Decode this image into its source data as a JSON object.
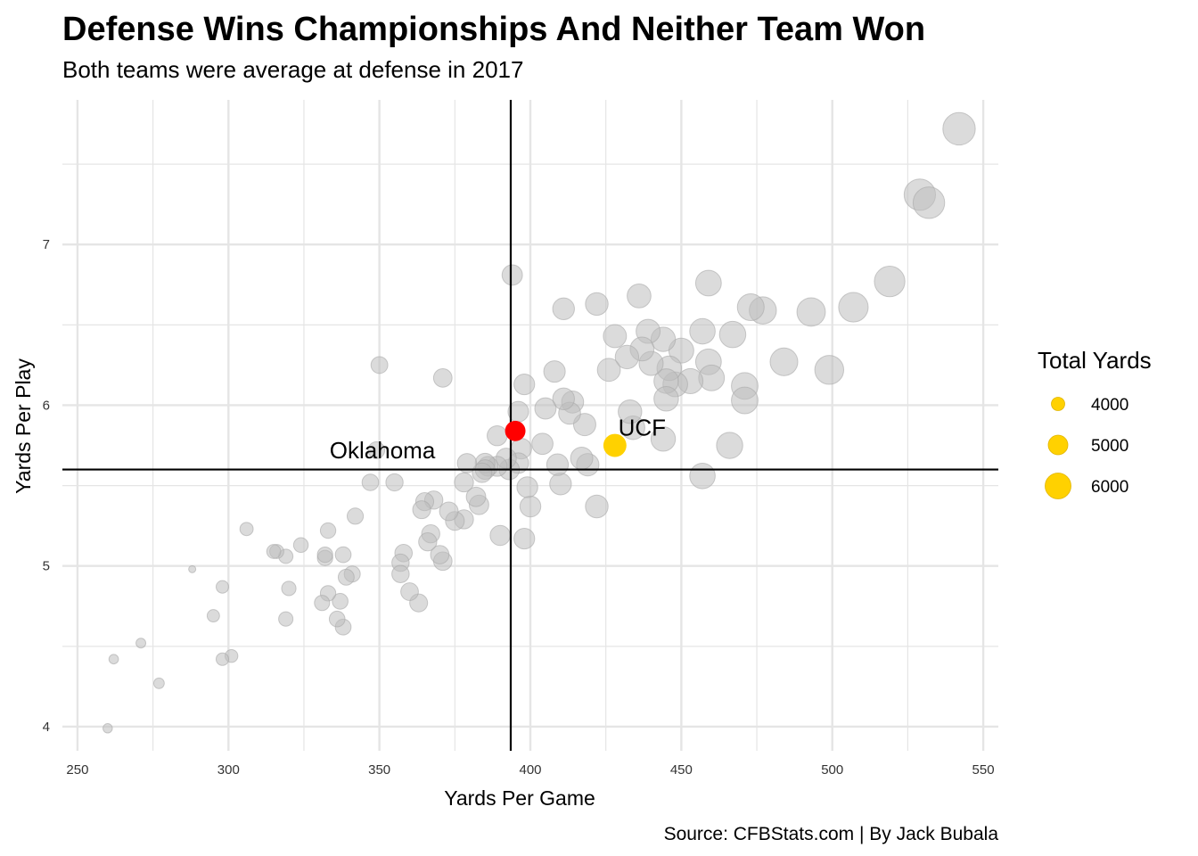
{
  "page": {
    "title": "Defense Wins Championships And Neither Team Won",
    "subtitle": "Both teams were average at defense in 2017",
    "caption": "Source: CFBStats.com | By Jack Bubala"
  },
  "chart_data": {
    "type": "scatter",
    "xlabel": "Yards Per Game",
    "ylabel": "Yards Per Play",
    "xlim": [
      245,
      555
    ],
    "ylim": [
      3.85,
      7.9
    ],
    "xticks": [
      250,
      300,
      350,
      400,
      450,
      500,
      550
    ],
    "yticks": [
      4,
      5,
      6,
      7
    ],
    "grid": true,
    "size_variable": "Total Yards",
    "reference_lines": {
      "x": 393.5,
      "y": 5.6
    },
    "colors": {
      "default": "#bdbdbd",
      "highlight_oklahoma": "#ff0000",
      "highlight_ucf": "#ffd100",
      "reference": "#000000",
      "grid": "#e5e5e5"
    },
    "legend": {
      "title": "Total Yards",
      "position": "right",
      "entries": [
        {
          "label": "4000",
          "value": 4000
        },
        {
          "label": "5000",
          "value": 5000
        },
        {
          "label": "6000",
          "value": 6000
        }
      ]
    },
    "annotations": [
      {
        "text": "Oklahoma",
        "x": 351,
        "y": 5.67
      },
      {
        "text": "UCF",
        "x": 437,
        "y": 5.81
      }
    ],
    "highlights": [
      {
        "team": "Oklahoma",
        "x": 395,
        "y": 5.84,
        "total": 5135
      },
      {
        "team": "UCF",
        "x": 428,
        "y": 5.75,
        "total": 5560
      }
    ],
    "points": [
      [
        542,
        7.72,
        7050
      ],
      [
        529,
        7.31,
        6880
      ],
      [
        532,
        7.26,
        6910
      ],
      [
        519,
        6.77,
        6750
      ],
      [
        507,
        6.61,
        6590
      ],
      [
        499,
        6.22,
        6490
      ],
      [
        493,
        6.58,
        6410
      ],
      [
        484,
        6.27,
        6290
      ],
      [
        477,
        6.59,
        6200
      ],
      [
        473,
        6.61,
        6150
      ],
      [
        471,
        6.12,
        6120
      ],
      [
        471,
        6.03,
        6120
      ],
      [
        467,
        6.44,
        6070
      ],
      [
        466,
        5.75,
        6060
      ],
      [
        459,
        6.76,
        5970
      ],
      [
        459,
        6.27,
        5970
      ],
      [
        460,
        6.17,
        5980
      ],
      [
        457,
        6.46,
        5940
      ],
      [
        457,
        5.56,
        5940
      ],
      [
        453,
        6.15,
        5890
      ],
      [
        450,
        6.34,
        5850
      ],
      [
        448,
        6.13,
        5820
      ],
      [
        446,
        6.23,
        5800
      ],
      [
        445,
        6.15,
        5790
      ],
      [
        444,
        6.41,
        5770
      ],
      [
        444,
        5.79,
        5770
      ],
      [
        445,
        6.04,
        5790
      ],
      [
        440,
        6.26,
        5720
      ],
      [
        439,
        6.46,
        5710
      ],
      [
        437,
        6.35,
        5680
      ],
      [
        436,
        6.68,
        5670
      ],
      [
        434,
        5.86,
        5640
      ],
      [
        433,
        5.96,
        5630
      ],
      [
        432,
        6.3,
        5620
      ],
      [
        428,
        6.43,
        5560
      ],
      [
        426,
        6.22,
        5540
      ],
      [
        422,
        6.63,
        5490
      ],
      [
        422,
        5.37,
        5490
      ],
      [
        418,
        5.88,
        5430
      ],
      [
        419,
        5.63,
        5450
      ],
      [
        417,
        5.67,
        5420
      ],
      [
        414,
        6.02,
        5380
      ],
      [
        413,
        5.95,
        5370
      ],
      [
        411,
        6.6,
        5340
      ],
      [
        411,
        6.04,
        5340
      ],
      [
        410,
        5.51,
        5330
      ],
      [
        409,
        5.63,
        5320
      ],
      [
        408,
        6.21,
        5300
      ],
      [
        405,
        5.98,
        5270
      ],
      [
        404,
        5.76,
        5250
      ],
      [
        400,
        5.37,
        5200
      ],
      [
        399,
        5.49,
        5190
      ],
      [
        398,
        5.17,
        5170
      ],
      [
        398,
        6.13,
        5170
      ],
      [
        397,
        5.73,
        5160
      ],
      [
        396,
        5.96,
        5150
      ],
      [
        396,
        5.64,
        5150
      ],
      [
        394,
        6.81,
        5120
      ],
      [
        393,
        5.6,
        5110
      ],
      [
        392,
        5.67,
        5100
      ],
      [
        390,
        5.19,
        5070
      ],
      [
        389,
        5.81,
        5060
      ],
      [
        389,
        5.62,
        5060
      ],
      [
        386,
        5.62,
        5020
      ],
      [
        385,
        5.64,
        5000
      ],
      [
        385,
        5.6,
        5000
      ],
      [
        384,
        5.58,
        4990
      ],
      [
        383,
        5.38,
        4980
      ],
      [
        382,
        5.43,
        4970
      ],
      [
        379,
        5.64,
        4930
      ],
      [
        378,
        5.52,
        4910
      ],
      [
        378,
        5.29,
        4910
      ],
      [
        375,
        5.28,
        4870
      ],
      [
        373,
        5.34,
        4850
      ],
      [
        371,
        6.17,
        4820
      ],
      [
        371,
        5.03,
        4820
      ],
      [
        370,
        5.07,
        4810
      ],
      [
        368,
        5.41,
        4780
      ],
      [
        367,
        5.2,
        4770
      ],
      [
        366,
        5.15,
        4760
      ],
      [
        365,
        5.4,
        4740
      ],
      [
        364,
        5.35,
        4730
      ],
      [
        363,
        4.77,
        4720
      ],
      [
        360,
        4.84,
        4680
      ],
      [
        358,
        5.08,
        4650
      ],
      [
        357,
        5.02,
        4640
      ],
      [
        357,
        4.95,
        4640
      ],
      [
        355,
        5.52,
        4620
      ],
      [
        350,
        6.25,
        4550
      ],
      [
        349,
        5.72,
        4540
      ],
      [
        347,
        5.52,
        4510
      ],
      [
        342,
        5.31,
        4450
      ],
      [
        341,
        4.95,
        4430
      ],
      [
        339,
        4.93,
        4410
      ],
      [
        338,
        5.07,
        4390
      ],
      [
        338,
        4.62,
        4390
      ],
      [
        337,
        4.78,
        4380
      ],
      [
        336,
        4.67,
        4370
      ],
      [
        333,
        4.83,
        4330
      ],
      [
        333,
        5.22,
        4330
      ],
      [
        332,
        5.05,
        4320
      ],
      [
        332,
        5.07,
        4320
      ],
      [
        331,
        4.77,
        4300
      ],
      [
        324,
        5.13,
        4210
      ],
      [
        320,
        4.86,
        4160
      ],
      [
        319,
        5.06,
        4150
      ],
      [
        319,
        4.67,
        4150
      ],
      [
        316,
        5.09,
        4110
      ],
      [
        315,
        5.09,
        4100
      ],
      [
        306,
        5.23,
        3980
      ],
      [
        301,
        4.44,
        3910
      ],
      [
        298,
        4.87,
        3870
      ],
      [
        298,
        4.42,
        3870
      ],
      [
        295,
        4.69,
        3840
      ],
      [
        288,
        4.98,
        3000
      ],
      [
        277,
        4.27,
        3550
      ],
      [
        271,
        4.52,
        3420
      ],
      [
        262,
        4.42,
        3380
      ],
      [
        260,
        3.99,
        3360
      ]
    ]
  }
}
